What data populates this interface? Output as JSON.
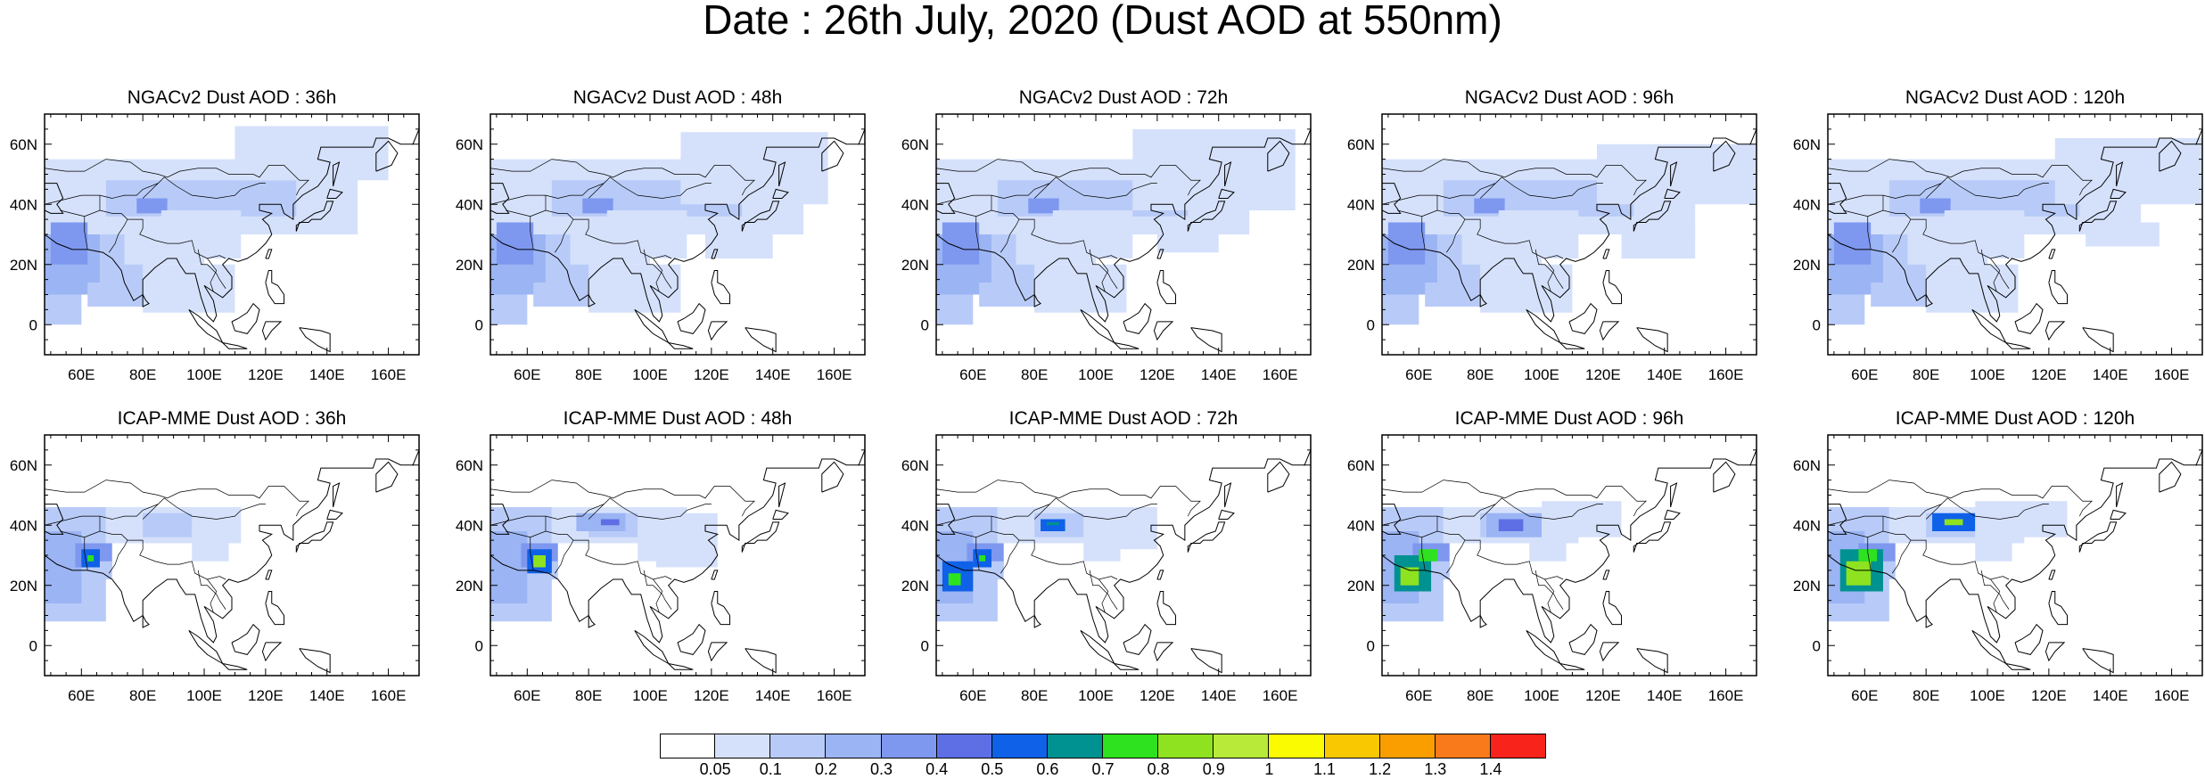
{
  "title": "Date : 26th July, 2020 (Dust AOD at 550nm)",
  "map": {
    "lon_ticks": [
      "60E",
      "80E",
      "100E",
      "120E",
      "140E",
      "160E"
    ],
    "lat_ticks": [
      "60N",
      "40N",
      "20N",
      "0"
    ],
    "lon_range": [
      48,
      170
    ],
    "lat_range": [
      -10,
      70
    ]
  },
  "panels": [
    {
      "title": "NGACv2 Dust AOD : 36h",
      "model": "NGACv2",
      "lead": "36h",
      "max_level": 5
    },
    {
      "title": "NGACv2 Dust AOD : 48h",
      "model": "NGACv2",
      "lead": "48h",
      "max_level": 5
    },
    {
      "title": "NGACv2 Dust AOD : 72h",
      "model": "NGACv2",
      "lead": "72h",
      "max_level": 5
    },
    {
      "title": "NGACv2 Dust AOD : 96h",
      "model": "NGACv2",
      "lead": "96h",
      "max_level": 5
    },
    {
      "title": "NGACv2 Dust AOD : 120h",
      "model": "NGACv2",
      "lead": "120h",
      "max_level": 5
    },
    {
      "title": "ICAP-MME Dust AOD : 36h",
      "model": "ICAP-MME",
      "lead": "36h",
      "max_level": 9
    },
    {
      "title": "ICAP-MME Dust AOD : 48h",
      "model": "ICAP-MME",
      "lead": "48h",
      "max_level": 9
    },
    {
      "title": "ICAP-MME Dust AOD : 72h",
      "model": "ICAP-MME",
      "lead": "72h",
      "max_level": 9
    },
    {
      "title": "ICAP-MME Dust AOD : 96h",
      "model": "ICAP-MME",
      "lead": "96h",
      "max_level": 9
    },
    {
      "title": "ICAP-MME Dust AOD : 120h",
      "model": "ICAP-MME",
      "lead": "120h",
      "max_level": 9
    }
  ],
  "colorbar": {
    "labels": [
      "0.05",
      "0.1",
      "0.2",
      "0.3",
      "0.4",
      "0.5",
      "0.6",
      "0.7",
      "0.8",
      "0.9",
      "1",
      "1.1",
      "1.2",
      "1.3",
      "1.4"
    ],
    "colors": [
      "#ffffff",
      "#d5e1fb",
      "#b8cbf8",
      "#9bb4f3",
      "#7e98f0",
      "#5e6fe6",
      "#0f61e8",
      "#009191",
      "#2ee21f",
      "#8ee21f",
      "#b8ea3a",
      "#fafa00",
      "#fac800",
      "#fa9e00",
      "#f87a1b",
      "#f8231b"
    ]
  }
}
